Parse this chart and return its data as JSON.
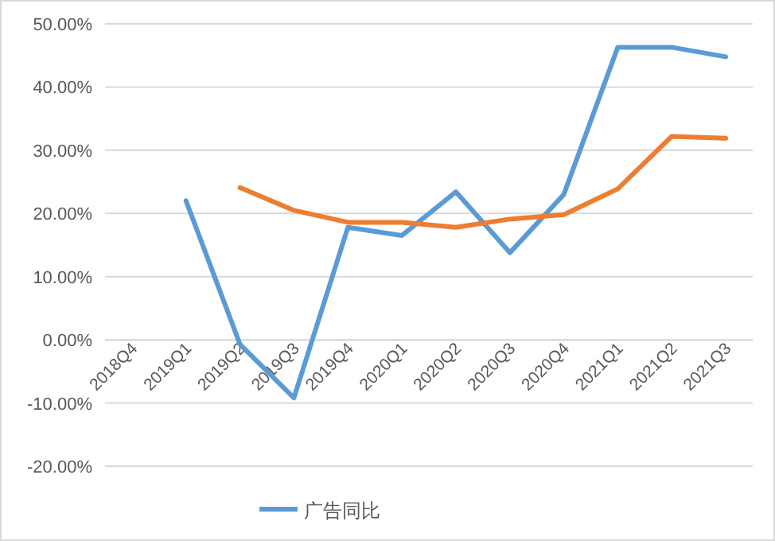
{
  "chart_data": {
    "type": "line",
    "categories": [
      "2018Q4",
      "2019Q1",
      "2019Q2",
      "2019Q3",
      "2019Q4",
      "2020Q1",
      "2020Q2",
      "2020Q3",
      "2020Q4",
      "2021Q1",
      "2021Q2",
      "2021Q3"
    ],
    "series": [
      {
        "name": "广告同比",
        "color": "#5b9bd5",
        "values": [
          null,
          22.0,
          -0.7,
          -9.2,
          17.8,
          16.5,
          23.4,
          13.8,
          23.0,
          46.3,
          46.3,
          44.8
        ]
      },
      {
        "color": "#ed7d31",
        "values": [
          null,
          null,
          24.1,
          20.5,
          18.6,
          18.6,
          17.8,
          19.1,
          19.8,
          23.9,
          32.2,
          31.9
        ]
      }
    ],
    "ylim": [
      -20,
      50
    ],
    "yticks": [
      {
        "value": -20,
        "label": "-20.00%"
      },
      {
        "value": -10,
        "label": "-10.00%"
      },
      {
        "value": 0,
        "label": "0.00%"
      },
      {
        "value": 10,
        "label": "10.00%"
      },
      {
        "value": 20,
        "label": "20.00%"
      },
      {
        "value": 30,
        "label": "30.00%"
      },
      {
        "value": 40,
        "label": "40.00%"
      },
      {
        "value": 50,
        "label": "50.00%"
      }
    ],
    "grid": "y",
    "legend": "bottom",
    "marker": "none",
    "line_style": "solid"
  }
}
